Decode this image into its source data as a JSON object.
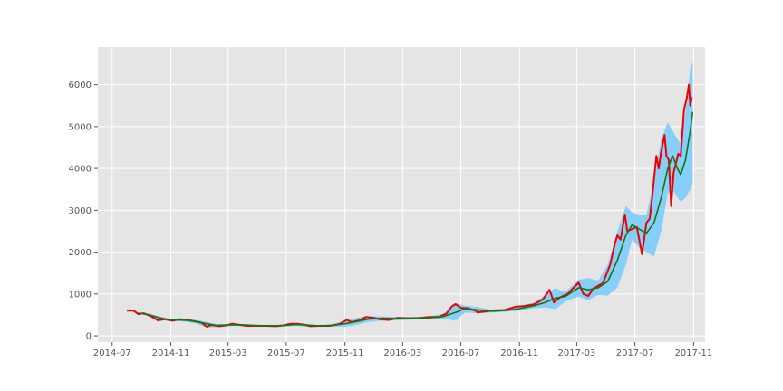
{
  "chart_data": {
    "type": "line",
    "title": "",
    "xlabel": "",
    "ylabel": "",
    "x_ticks": [
      "2014-07",
      "2014-11",
      "2015-03",
      "2015-07",
      "2015-11",
      "2016-03",
      "2016-07",
      "2016-11",
      "2017-03",
      "2017-07",
      "2017-11"
    ],
    "y_ticks": [
      0,
      1000,
      2000,
      3000,
      4000,
      5000,
      6000
    ],
    "xlim": [
      "2014-06-01",
      "2017-11-25"
    ],
    "ylim": [
      -150,
      6900
    ],
    "grid": true,
    "legend": "none",
    "colors": {
      "background": "#e5e5e5",
      "grid": "#ffffff",
      "price": "#ee0000",
      "moving_average": "#117711",
      "band": "#87cefa"
    },
    "series": [
      {
        "role": "price",
        "points": [
          [
            "2014-08-01",
            600
          ],
          [
            "2014-08-15",
            600
          ],
          [
            "2014-08-25",
            520
          ],
          [
            "2014-09-05",
            540
          ],
          [
            "2014-09-20",
            470
          ],
          [
            "2014-10-05",
            370
          ],
          [
            "2014-10-20",
            400
          ],
          [
            "2014-11-05",
            360
          ],
          [
            "2014-11-20",
            400
          ],
          [
            "2014-12-05",
            380
          ],
          [
            "2014-12-20",
            350
          ],
          [
            "2015-01-05",
            310
          ],
          [
            "2015-01-15",
            220
          ],
          [
            "2015-01-25",
            260
          ],
          [
            "2015-02-10",
            230
          ],
          [
            "2015-02-25",
            250
          ],
          [
            "2015-03-10",
            290
          ],
          [
            "2015-03-25",
            260
          ],
          [
            "2015-04-10",
            240
          ],
          [
            "2015-05-01",
            240
          ],
          [
            "2015-05-20",
            240
          ],
          [
            "2015-06-10",
            230
          ],
          [
            "2015-06-25",
            250
          ],
          [
            "2015-07-10",
            290
          ],
          [
            "2015-07-25",
            290
          ],
          [
            "2015-08-10",
            260
          ],
          [
            "2015-08-20",
            230
          ],
          [
            "2015-09-10",
            240
          ],
          [
            "2015-10-01",
            240
          ],
          [
            "2015-10-20",
            280
          ],
          [
            "2015-11-05",
            380
          ],
          [
            "2015-11-15",
            330
          ],
          [
            "2015-12-01",
            370
          ],
          [
            "2015-12-15",
            450
          ],
          [
            "2016-01-01",
            430
          ],
          [
            "2016-01-15",
            390
          ],
          [
            "2016-02-01",
            380
          ],
          [
            "2016-02-20",
            430
          ],
          [
            "2016-03-10",
            420
          ],
          [
            "2016-04-01",
            420
          ],
          [
            "2016-04-25",
            450
          ],
          [
            "2016-05-15",
            450
          ],
          [
            "2016-06-01",
            530
          ],
          [
            "2016-06-12",
            700
          ],
          [
            "2016-06-20",
            760
          ],
          [
            "2016-07-01",
            670
          ],
          [
            "2016-07-15",
            660
          ],
          [
            "2016-08-01",
            600
          ],
          [
            "2016-08-05",
            560
          ],
          [
            "2016-08-20",
            580
          ],
          [
            "2016-09-10",
            610
          ],
          [
            "2016-10-01",
            615
          ],
          [
            "2016-10-25",
            700
          ],
          [
            "2016-11-10",
            710
          ],
          [
            "2016-12-01",
            750
          ],
          [
            "2016-12-20",
            870
          ],
          [
            "2017-01-03",
            1100
          ],
          [
            "2017-01-12",
            800
          ],
          [
            "2017-01-25",
            920
          ],
          [
            "2017-02-10",
            1000
          ],
          [
            "2017-02-25",
            1180
          ],
          [
            "2017-03-05",
            1270
          ],
          [
            "2017-03-15",
            1000
          ],
          [
            "2017-03-25",
            950
          ],
          [
            "2017-04-05",
            1130
          ],
          [
            "2017-04-25",
            1260
          ],
          [
            "2017-05-10",
            1700
          ],
          [
            "2017-05-20",
            2200
          ],
          [
            "2017-05-25",
            2400
          ],
          [
            "2017-06-01",
            2300
          ],
          [
            "2017-06-10",
            2900
          ],
          [
            "2017-06-15",
            2500
          ],
          [
            "2017-06-25",
            2550
          ],
          [
            "2017-07-05",
            2600
          ],
          [
            "2017-07-16",
            1950
          ],
          [
            "2017-07-25",
            2700
          ],
          [
            "2017-08-01",
            2800
          ],
          [
            "2017-08-06",
            3300
          ],
          [
            "2017-08-15",
            4300
          ],
          [
            "2017-08-20",
            4000
          ],
          [
            "2017-08-25",
            4400
          ],
          [
            "2017-09-01",
            4800
          ],
          [
            "2017-09-05",
            4300
          ],
          [
            "2017-09-10",
            4200
          ],
          [
            "2017-09-15",
            3100
          ],
          [
            "2017-09-20",
            3900
          ],
          [
            "2017-09-30",
            4350
          ],
          [
            "2017-10-05",
            4300
          ],
          [
            "2017-10-12",
            5400
          ],
          [
            "2017-10-18",
            5700
          ],
          [
            "2017-10-22",
            6000
          ],
          [
            "2017-10-25",
            5500
          ],
          [
            "2017-10-28",
            5700
          ]
        ]
      },
      {
        "role": "moving_average",
        "points": [
          [
            "2014-08-25",
            540
          ],
          [
            "2014-09-15",
            510
          ],
          [
            "2014-10-05",
            440
          ],
          [
            "2014-10-25",
            390
          ],
          [
            "2014-11-15",
            380
          ],
          [
            "2014-12-05",
            370
          ],
          [
            "2014-12-25",
            340
          ],
          [
            "2015-01-15",
            290
          ],
          [
            "2015-02-05",
            250
          ],
          [
            "2015-03-01",
            260
          ],
          [
            "2015-03-25",
            265
          ],
          [
            "2015-04-25",
            250
          ],
          [
            "2015-05-25",
            240
          ],
          [
            "2015-06-25",
            245
          ],
          [
            "2015-07-20",
            270
          ],
          [
            "2015-08-10",
            260
          ],
          [
            "2015-09-05",
            240
          ],
          [
            "2015-10-05",
            250
          ],
          [
            "2015-11-01",
            290
          ],
          [
            "2015-11-25",
            340
          ],
          [
            "2015-12-20",
            400
          ],
          [
            "2016-01-20",
            420
          ],
          [
            "2016-02-20",
            410
          ],
          [
            "2016-03-25",
            420
          ],
          [
            "2016-04-25",
            430
          ],
          [
            "2016-05-25",
            460
          ],
          [
            "2016-06-20",
            560
          ],
          [
            "2016-07-10",
            650
          ],
          [
            "2016-08-05",
            620
          ],
          [
            "2016-09-05",
            590
          ],
          [
            "2016-10-05",
            610
          ],
          [
            "2016-11-01",
            650
          ],
          [
            "2016-12-01",
            720
          ],
          [
            "2016-12-25",
            800
          ],
          [
            "2017-01-15",
            900
          ],
          [
            "2017-02-05",
            940
          ],
          [
            "2017-03-05",
            1150
          ],
          [
            "2017-03-25",
            1100
          ],
          [
            "2017-04-15",
            1150
          ],
          [
            "2017-05-05",
            1300
          ],
          [
            "2017-05-25",
            1800
          ],
          [
            "2017-06-12",
            2400
          ],
          [
            "2017-06-25",
            2650
          ],
          [
            "2017-07-10",
            2550
          ],
          [
            "2017-07-25",
            2450
          ],
          [
            "2017-08-10",
            2700
          ],
          [
            "2017-08-25",
            3300
          ],
          [
            "2017-09-08",
            4000
          ],
          [
            "2017-09-18",
            4300
          ],
          [
            "2017-09-28",
            4000
          ],
          [
            "2017-10-05",
            3850
          ],
          [
            "2017-10-15",
            4200
          ],
          [
            "2017-10-25",
            4900
          ],
          [
            "2017-10-30",
            5350
          ]
        ]
      },
      {
        "role": "band",
        "points": [
          [
            "2014-08-25",
            540,
            560,
            520
          ],
          [
            "2014-09-15",
            510,
            530,
            490
          ],
          [
            "2014-10-05",
            440,
            470,
            400
          ],
          [
            "2014-10-25",
            390,
            420,
            350
          ],
          [
            "2014-11-15",
            380,
            400,
            350
          ],
          [
            "2014-12-05",
            370,
            390,
            330
          ],
          [
            "2014-12-25",
            340,
            380,
            290
          ],
          [
            "2015-01-15",
            290,
            330,
            200
          ],
          [
            "2015-02-05",
            250,
            280,
            210
          ],
          [
            "2015-03-01",
            260,
            290,
            230
          ],
          [
            "2015-03-25",
            265,
            290,
            240
          ],
          [
            "2015-04-25",
            250,
            270,
            230
          ],
          [
            "2015-05-25",
            240,
            260,
            220
          ],
          [
            "2015-06-25",
            245,
            270,
            225
          ],
          [
            "2015-07-20",
            270,
            300,
            240
          ],
          [
            "2015-08-10",
            260,
            290,
            220
          ],
          [
            "2015-09-05",
            240,
            260,
            220
          ],
          [
            "2015-10-05",
            250,
            280,
            220
          ],
          [
            "2015-11-01",
            290,
            360,
            220
          ],
          [
            "2015-11-25",
            340,
            430,
            260
          ],
          [
            "2015-12-20",
            400,
            470,
            330
          ],
          [
            "2016-01-20",
            420,
            460,
            370
          ],
          [
            "2016-02-20",
            410,
            450,
            370
          ],
          [
            "2016-03-25",
            420,
            450,
            390
          ],
          [
            "2016-04-25",
            430,
            460,
            400
          ],
          [
            "2016-05-25",
            460,
            530,
            410
          ],
          [
            "2016-06-20",
            560,
            780,
            360
          ],
          [
            "2016-07-10",
            650,
            720,
            560
          ],
          [
            "2016-08-05",
            620,
            690,
            540
          ],
          [
            "2016-09-05",
            590,
            620,
            560
          ],
          [
            "2016-10-05",
            610,
            650,
            580
          ],
          [
            "2016-11-01",
            650,
            720,
            600
          ],
          [
            "2016-12-01",
            720,
            790,
            660
          ],
          [
            "2016-12-25",
            800,
            980,
            680
          ],
          [
            "2017-01-15",
            900,
            1140,
            640
          ],
          [
            "2017-02-05",
            940,
            1050,
            820
          ],
          [
            "2017-03-05",
            1150,
            1340,
            940
          ],
          [
            "2017-03-25",
            1100,
            1380,
            850
          ],
          [
            "2017-04-15",
            1150,
            1320,
            980
          ],
          [
            "2017-05-05",
            1300,
            1700,
            960
          ],
          [
            "2017-05-25",
            1800,
            2500,
            1150
          ],
          [
            "2017-06-12",
            2400,
            3100,
            1700
          ],
          [
            "2017-06-25",
            2650,
            2950,
            2300
          ],
          [
            "2017-07-10",
            2550,
            2900,
            2100
          ],
          [
            "2017-07-25",
            2450,
            2900,
            2000
          ],
          [
            "2017-08-10",
            2700,
            3700,
            1900
          ],
          [
            "2017-08-25",
            3300,
            4700,
            2500
          ],
          [
            "2017-09-08",
            4000,
            5100,
            3400
          ],
          [
            "2017-09-18",
            4300,
            4900,
            3500
          ],
          [
            "2017-09-28",
            4000,
            4700,
            3300
          ],
          [
            "2017-10-05",
            3850,
            4600,
            3200
          ],
          [
            "2017-10-15",
            4200,
            5300,
            3300
          ],
          [
            "2017-10-25",
            4900,
            6400,
            3500
          ],
          [
            "2017-10-30",
            5350,
            6550,
            3650
          ]
        ]
      }
    ]
  }
}
